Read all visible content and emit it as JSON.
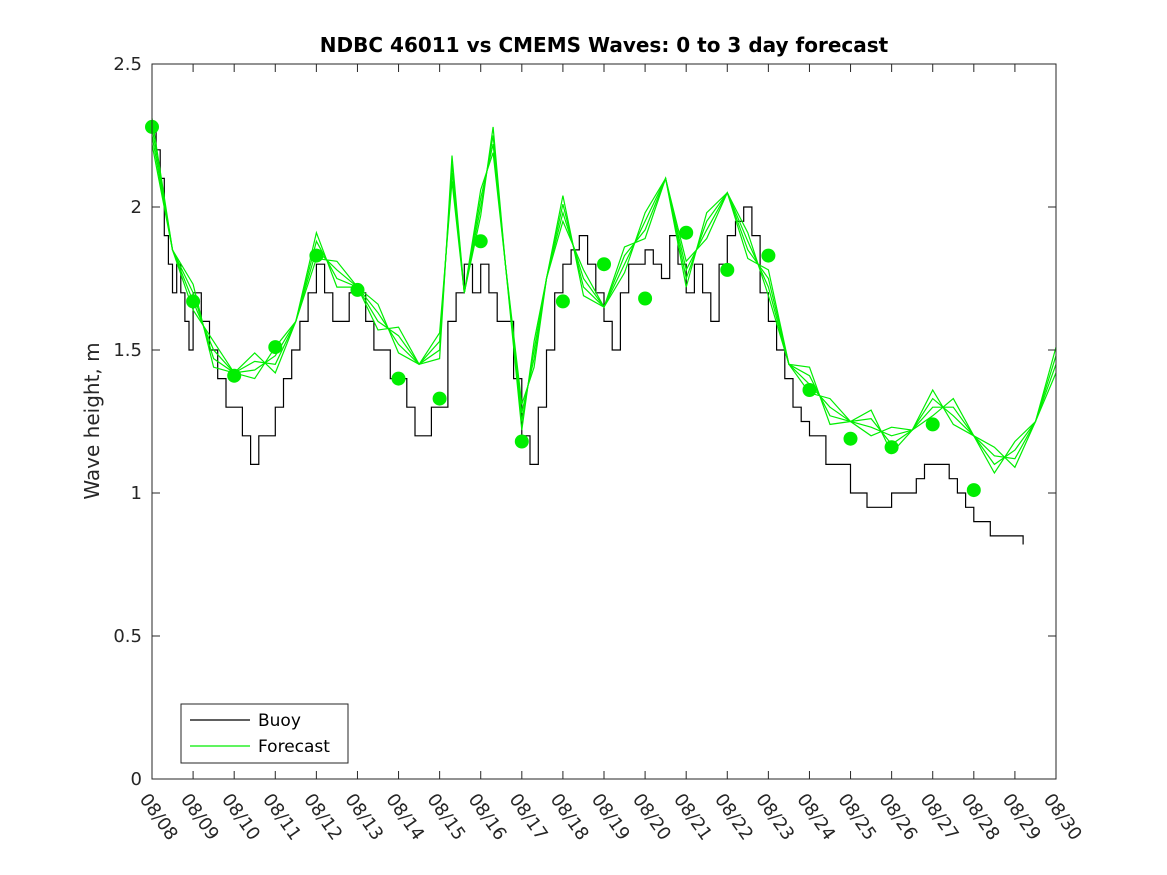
{
  "chart_data": {
    "type": "line",
    "title": "NDBC 46011 vs CMEMS Waves: 0 to 3 day forecast",
    "xlabel": "",
    "ylabel": "Wave height, m",
    "ylim": [
      0,
      2.5
    ],
    "yticks": [
      0,
      0.5,
      1,
      1.5,
      2,
      2.5
    ],
    "ytick_labels": [
      "0",
      "0.5",
      "1",
      "1.5",
      "2",
      "2.5"
    ],
    "xlim": [
      0,
      22
    ],
    "x_unit": "days since 08/08",
    "xtick_labels": [
      "08/08",
      "08/09",
      "08/10",
      "08/11",
      "08/12",
      "08/13",
      "08/14",
      "08/15",
      "08/16",
      "08/17",
      "08/18",
      "08/19",
      "08/20",
      "08/21",
      "08/22",
      "08/23",
      "08/24",
      "08/25",
      "08/26",
      "08/27",
      "08/28",
      "08/29",
      "08/30"
    ],
    "legend": {
      "location": "bottom-left",
      "entries": [
        {
          "name": "Buoy",
          "color": "#000000"
        },
        {
          "name": "Forecast",
          "color": "#00ee00"
        }
      ]
    },
    "colors": {
      "buoy": "#000000",
      "forecast": "#00ee00",
      "forecast_marker": "#00ee00"
    },
    "buoy": {
      "x": [
        0,
        0.1,
        0.2,
        0.3,
        0.4,
        0.5,
        0.6,
        0.7,
        0.8,
        0.9,
        1.0,
        1.2,
        1.4,
        1.6,
        1.8,
        2.0,
        2.2,
        2.4,
        2.6,
        2.8,
        3.0,
        3.2,
        3.4,
        3.6,
        3.8,
        4.0,
        4.2,
        4.4,
        4.6,
        4.8,
        5.0,
        5.2,
        5.4,
        5.6,
        5.8,
        6.0,
        6.2,
        6.4,
        6.6,
        6.8,
        7.0,
        7.2,
        7.4,
        7.6,
        7.8,
        8.0,
        8.2,
        8.4,
        8.6,
        8.8,
        9.0,
        9.2,
        9.4,
        9.6,
        9.8,
        10.0,
        10.2,
        10.4,
        10.6,
        10.8,
        11.0,
        11.2,
        11.4,
        11.6,
        11.8,
        12.0,
        12.2,
        12.4,
        12.6,
        12.8,
        13.0,
        13.2,
        13.4,
        13.6,
        13.8,
        14.0,
        14.2,
        14.4,
        14.6,
        14.8,
        15.0,
        15.2,
        15.4,
        15.6,
        15.8,
        16.0,
        16.2,
        16.4,
        16.6,
        16.8,
        17.0,
        17.2,
        17.4,
        17.6,
        17.8,
        18.0,
        18.2,
        18.4,
        18.6,
        18.8,
        19.0,
        19.2,
        19.4,
        19.6,
        19.8,
        20.0,
        20.2,
        20.4,
        20.6,
        20.8,
        21.0,
        21.2
      ],
      "y": [
        2.28,
        2.2,
        2.1,
        1.9,
        1.8,
        1.7,
        1.8,
        1.7,
        1.6,
        1.5,
        1.7,
        1.6,
        1.5,
        1.4,
        1.3,
        1.3,
        1.2,
        1.1,
        1.2,
        1.2,
        1.3,
        1.4,
        1.5,
        1.6,
        1.7,
        1.8,
        1.7,
        1.6,
        1.6,
        1.7,
        1.7,
        1.6,
        1.5,
        1.5,
        1.4,
        1.4,
        1.3,
        1.2,
        1.2,
        1.3,
        1.3,
        1.6,
        1.7,
        1.8,
        1.7,
        1.8,
        1.7,
        1.6,
        1.6,
        1.4,
        1.2,
        1.1,
        1.3,
        1.5,
        1.7,
        1.8,
        1.85,
        1.9,
        1.8,
        1.7,
        1.6,
        1.5,
        1.7,
        1.8,
        1.8,
        1.85,
        1.8,
        1.75,
        1.9,
        1.8,
        1.7,
        1.8,
        1.7,
        1.6,
        1.8,
        1.9,
        1.95,
        2.0,
        1.9,
        1.7,
        1.6,
        1.5,
        1.4,
        1.3,
        1.25,
        1.2,
        1.2,
        1.1,
        1.1,
        1.1,
        1.0,
        1.0,
        0.95,
        0.95,
        0.95,
        1.0,
        1.0,
        1.0,
        1.05,
        1.1,
        1.1,
        1.1,
        1.05,
        1.0,
        0.95,
        0.9,
        0.9,
        0.85,
        0.85,
        0.85,
        0.85,
        0.82
      ]
    },
    "forecast": {
      "x": [
        0,
        0.5,
        1.0,
        1.5,
        2.0,
        2.5,
        3.0,
        3.5,
        4.0,
        4.5,
        5.0,
        5.5,
        6.0,
        6.5,
        7.0,
        7.3,
        7.6,
        8.0,
        8.3,
        8.6,
        9.0,
        9.3,
        9.6,
        10.0,
        10.5,
        11.0,
        11.5,
        12.0,
        12.5,
        13.0,
        13.5,
        14.0,
        14.5,
        15.0,
        15.5,
        16.0,
        16.5,
        17.0,
        17.5,
        18.0,
        18.5,
        19.0,
        19.5,
        20.0,
        20.5,
        21.0,
        21.5,
        22.0
      ],
      "y": [
        2.28,
        1.85,
        1.67,
        1.5,
        1.42,
        1.43,
        1.48,
        1.6,
        1.85,
        1.78,
        1.72,
        1.6,
        1.55,
        1.45,
        1.5,
        2.15,
        1.7,
        2.0,
        2.25,
        1.8,
        1.25,
        1.5,
        1.75,
        1.98,
        1.75,
        1.65,
        1.8,
        1.95,
        2.1,
        1.75,
        1.95,
        2.05,
        1.85,
        1.75,
        1.45,
        1.38,
        1.3,
        1.25,
        1.23,
        1.2,
        1.22,
        1.3,
        1.3,
        1.2,
        1.1,
        1.15,
        1.25,
        1.45
      ]
    },
    "forecast_markers": {
      "x": [
        0,
        1,
        2,
        3,
        4,
        5,
        6,
        7,
        8,
        9,
        10,
        11,
        12,
        13,
        14,
        15,
        16,
        17,
        18,
        19,
        20
      ],
      "y": [
        2.28,
        1.67,
        1.41,
        1.51,
        1.83,
        1.71,
        1.4,
        1.33,
        1.88,
        1.18,
        1.67,
        1.8,
        1.68,
        1.91,
        1.78,
        1.83,
        1.36,
        1.19,
        1.16,
        1.24,
        1.01
      ]
    }
  }
}
